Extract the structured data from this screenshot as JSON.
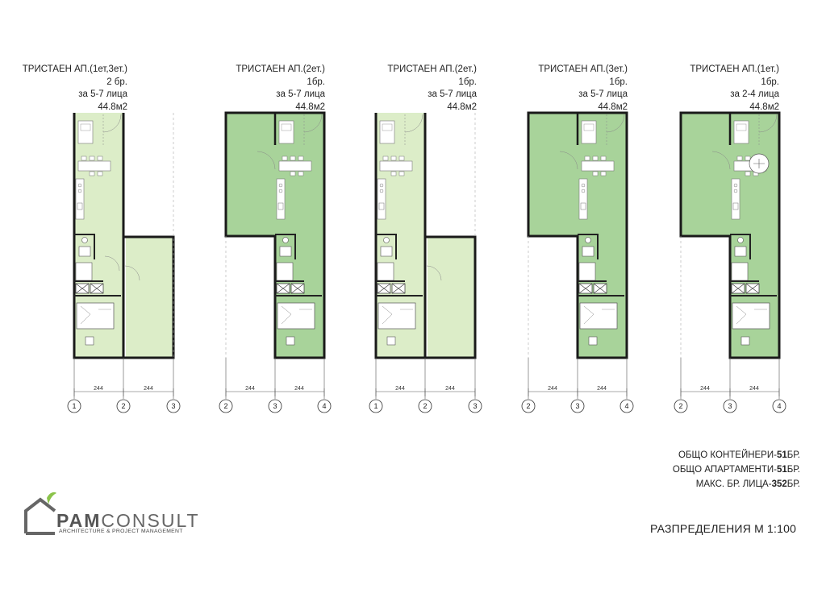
{
  "units": [
    {
      "title": "ТРИСТАЕН АП.(1ет,3ет.)",
      "rooms": "2 бр.",
      "persons": "за 5-7 лица",
      "area": "44.8м2",
      "dim_left": "244",
      "dim_right": "244",
      "axes": [
        "1",
        "2",
        "3"
      ]
    },
    {
      "title": "ТРИСТАЕН АП.(2ет.)",
      "rooms": "1бр.",
      "persons": "за 5-7 лица",
      "area": "44.8м2",
      "dim_left": "244",
      "dim_right": "244",
      "axes": [
        "2",
        "3",
        "4"
      ]
    },
    {
      "title": "ТРИСТАЕН АП.(2ет.)",
      "rooms": "1бр.",
      "persons": "за 5-7 лица",
      "area": "44.8м2",
      "dim_left": "244",
      "dim_right": "244",
      "axes": [
        "1",
        "2",
        "3"
      ]
    },
    {
      "title": "ТРИСТАЕН АП.(3ет.)",
      "rooms": "1бр.",
      "persons": "за 5-7 лица",
      "area": "44.8м2",
      "dim_left": "244",
      "dim_right": "244",
      "axes": [
        "2",
        "3",
        "4"
      ]
    },
    {
      "title": "ТРИСТАЕН АП.(1ет.)",
      "rooms": "1бр.",
      "persons": "за 2-4 лица",
      "area": "44.8м2",
      "dim_left": "244",
      "dim_right": "244",
      "axes": [
        "2",
        "3",
        "4"
      ]
    }
  ],
  "summary": {
    "containers_prefix": "ОБЩО КОНТЕЙНЕРИ-",
    "containers_value": "51",
    "containers_suffix": "БР.",
    "apartments_prefix": "ОБЩО АПАРТАМЕНТИ-",
    "apartments_value": "51",
    "apartments_suffix": "БР.",
    "persons_prefix": "МАКС. БР. ЛИЦА-",
    "persons_value": "352",
    "persons_suffix": "БР."
  },
  "scale_label": "РАЗПРЕДЕЛЕНИЯ  М 1:100",
  "logo": {
    "name_bold": "PAM",
    "name_regular": "CONSULT",
    "tagline": "ARCHITECTURE & PROJECT MANAGEMENT"
  },
  "colors": {
    "light_green": "#dcedc8",
    "dark_green": "#a8d39a",
    "wall": "#1a1a1a",
    "logo_leaf": "#8bc34a"
  }
}
